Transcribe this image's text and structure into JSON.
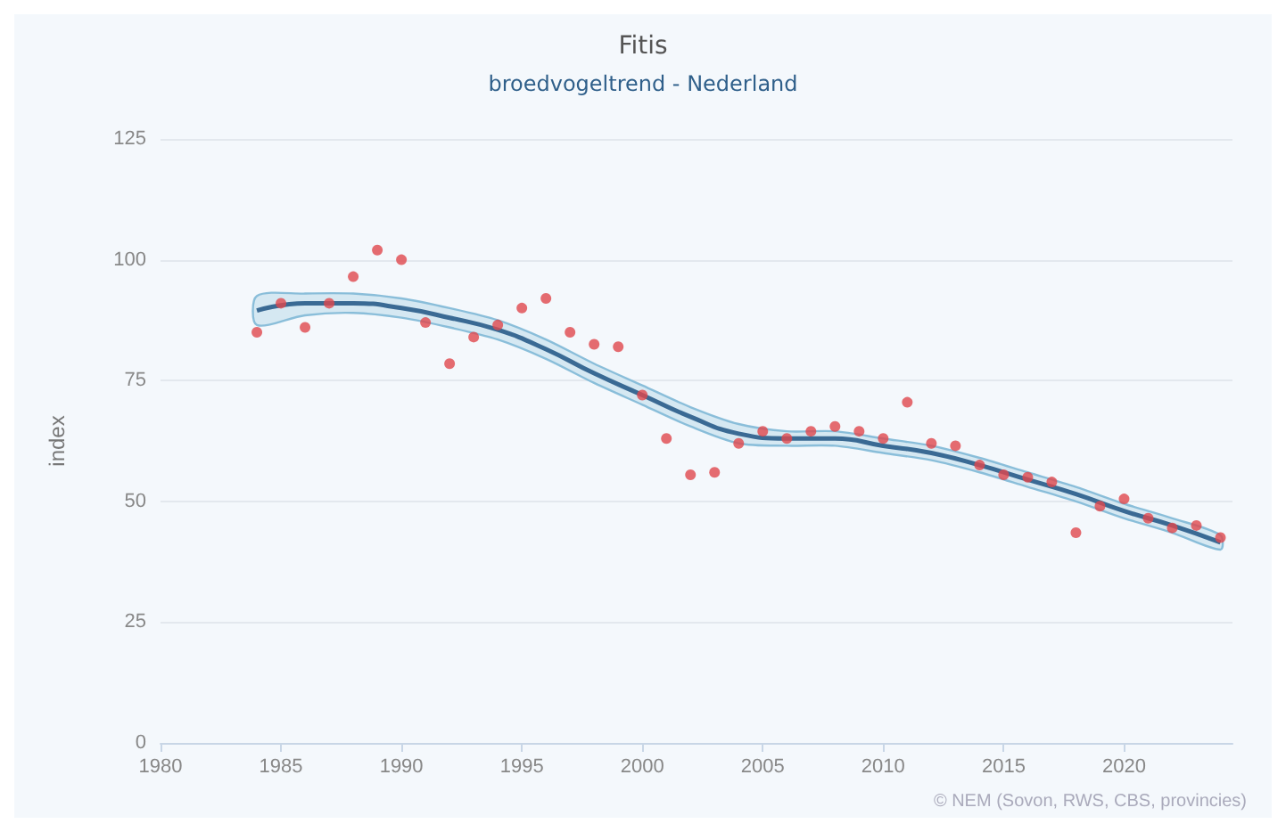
{
  "chart_data": {
    "type": "scatter",
    "title": "Fitis",
    "subtitle": "broedvogeltrend - Nederland",
    "ylabel": "index",
    "annotations": [
      "© NEM (Sovon, RWS, CBS, provincies)"
    ],
    "xlim": [
      1980,
      2024.5
    ],
    "xticks": [
      1980,
      1985,
      1990,
      1995,
      2000,
      2005,
      2010,
      2015,
      2020
    ],
    "ylim": [
      0,
      125
    ],
    "yticks": [
      0,
      25,
      50,
      75,
      100,
      125
    ],
    "grid": "y",
    "marker": "circle",
    "series": [
      {
        "type": "line",
        "marker": "none",
        "color": "#3a6a94",
        "x": [
          1984,
          1986,
          1988,
          1990,
          1992,
          1994,
          1996,
          1998,
          2000,
          2002,
          2004,
          2006,
          2008,
          2010,
          2012,
          2014,
          2016,
          2018,
          2020,
          2022,
          2024
        ],
        "values": [
          89.5,
          91,
          91,
          90,
          88,
          85.5,
          81.5,
          76.5,
          72,
          67.5,
          64,
          63,
          63,
          61.5,
          60,
          57.5,
          54.5,
          51.5,
          48,
          45,
          41.5
        ],
        "lower": [
          86.5,
          88.5,
          89,
          88,
          86,
          83.5,
          79.5,
          74.5,
          70,
          65.5,
          62,
          61.5,
          61.5,
          60,
          58.5,
          56,
          53,
          50,
          46.5,
          43.5,
          40
        ],
        "upper": [
          92.5,
          93,
          93,
          92,
          90,
          87.5,
          83.5,
          78.5,
          74,
          69.5,
          66,
          64.5,
          64.5,
          63,
          61.5,
          59,
          56,
          53,
          49.5,
          46.5,
          43
        ]
      },
      {
        "color": "#e0474c",
        "x": [
          1984,
          1985,
          1986,
          1987,
          1988,
          1989,
          1990,
          1991,
          1992,
          1993,
          1994,
          1995,
          1996,
          1997,
          1998,
          1999,
          2000,
          2001,
          2002,
          2003,
          2004,
          2005,
          2006,
          2007,
          2008,
          2009,
          2010,
          2011,
          2012,
          2013,
          2014,
          2015,
          2016,
          2017,
          2018,
          2019,
          2020,
          2021,
          2022,
          2023,
          2024
        ],
        "values": [
          85,
          91,
          86,
          91,
          96.5,
          102,
          100,
          87,
          78.5,
          84,
          86.5,
          90,
          92,
          85,
          82.5,
          82,
          72,
          63,
          55.5,
          56,
          62,
          64.5,
          63,
          64.5,
          65.5,
          64.5,
          63,
          70.5,
          62,
          61.5,
          57.5,
          55.5,
          55,
          54,
          43.5,
          49,
          50.5,
          46.5,
          44.5,
          45,
          42.5
        ]
      }
    ]
  }
}
